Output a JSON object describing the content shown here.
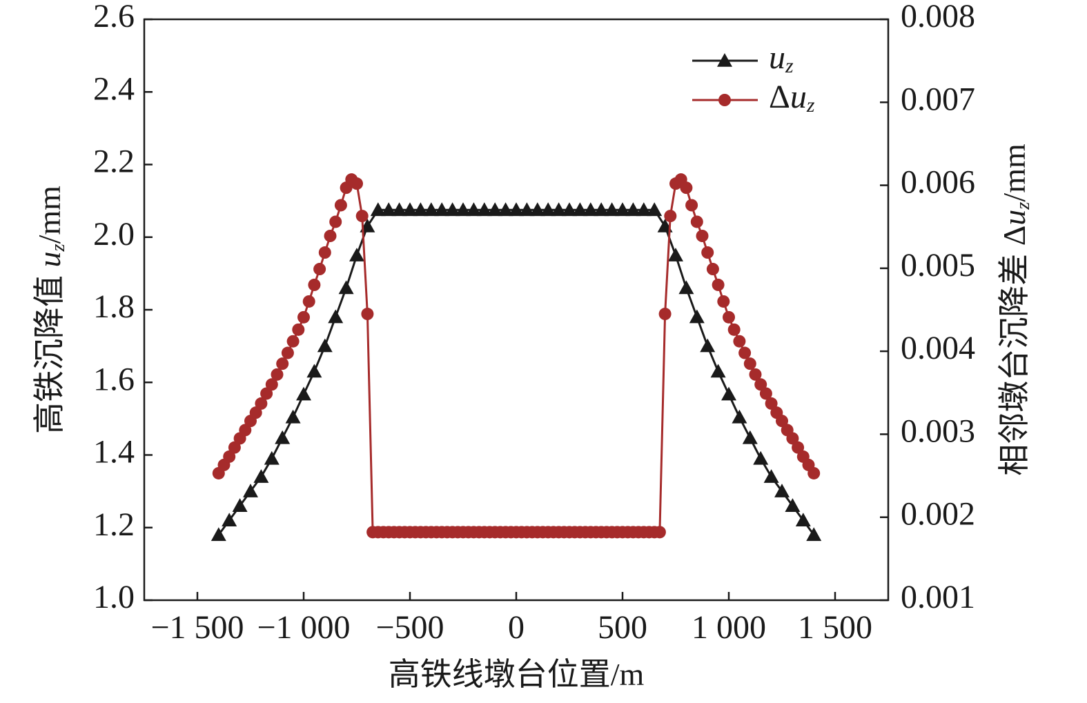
{
  "chart_data": {
    "type": "line",
    "x_label": "高铁线墩台位置/m",
    "y_label": "高铁沉降值 uz/mm",
    "y2_label": "相邻墩台沉降差 Δuz/mm",
    "xlim": [
      -1750,
      1750
    ],
    "xticks": [
      {
        "value": -1500,
        "label": "−1 500"
      },
      {
        "value": -1000,
        "label": "−1 000"
      },
      {
        "value": -500,
        "label": "−500"
      },
      0,
      500,
      {
        "value": 1000,
        "label": "1 000"
      },
      {
        "value": 1500,
        "label": "1 500"
      }
    ],
    "ylim": [
      1.0,
      2.6
    ],
    "yticks": [
      {
        "value": 1.0,
        "label": "1.0"
      },
      1.2,
      1.4,
      1.6,
      1.8,
      {
        "value": 2.0,
        "label": "2.0"
      },
      2.2,
      2.4,
      2.6
    ],
    "y2lim": [
      0.001,
      0.008
    ],
    "y2ticks": [
      0.001,
      0.002,
      0.003,
      0.004,
      0.005,
      0.006,
      0.007,
      0.008
    ],
    "legend": "upper right",
    "series": [
      {
        "name": "uz",
        "color": "#1a1a1a",
        "marker": "triangle",
        "axis": "y",
        "x": [
          -1400,
          -1350,
          -1300,
          -1250,
          -1200,
          -1150,
          -1100,
          -1050,
          -1000,
          -950,
          -900,
          -850,
          -800,
          -750,
          -700,
          -650,
          -600,
          -550,
          -500,
          -450,
          -400,
          -350,
          -300,
          -250,
          -200,
          -150,
          -100,
          -50,
          0,
          50,
          100,
          150,
          200,
          250,
          300,
          350,
          400,
          450,
          500,
          550,
          600,
          650,
          700,
          750,
          800,
          850,
          900,
          950,
          1000,
          1050,
          1100,
          1150,
          1200,
          1250,
          1300,
          1350,
          1400
        ],
        "values": [
          1.18,
          1.22,
          1.26,
          1.3,
          1.34,
          1.39,
          1.447,
          1.504,
          1.567,
          1.63,
          1.7,
          1.78,
          1.86,
          1.95,
          2.03,
          2.075,
          2.075,
          2.075,
          2.075,
          2.075,
          2.075,
          2.075,
          2.075,
          2.075,
          2.075,
          2.075,
          2.075,
          2.075,
          2.075,
          2.075,
          2.075,
          2.075,
          2.075,
          2.075,
          2.075,
          2.075,
          2.075,
          2.075,
          2.075,
          2.075,
          2.075,
          2.075,
          2.03,
          1.95,
          1.86,
          1.78,
          1.7,
          1.63,
          1.567,
          1.504,
          1.447,
          1.39,
          1.34,
          1.3,
          1.26,
          1.22,
          1.18
        ]
      },
      {
        "name": "Δuz",
        "color": "#a62b2b",
        "marker": "circle",
        "axis": "y2",
        "x": [
          -1400,
          -1375,
          -1350,
          -1325,
          -1300,
          -1275,
          -1250,
          -1225,
          -1200,
          -1175,
          -1150,
          -1125,
          -1100,
          -1075,
          -1050,
          -1025,
          -1000,
          -975,
          -950,
          -925,
          -900,
          -875,
          -850,
          -825,
          -800,
          -775,
          -750,
          -725,
          -700,
          -675,
          -650,
          -625,
          -600,
          -575,
          -550,
          -525,
          -500,
          -475,
          -450,
          -425,
          -400,
          -375,
          -350,
          -325,
          -300,
          -275,
          -250,
          -225,
          -200,
          -175,
          -150,
          -125,
          -100,
          -75,
          -50,
          -25,
          0,
          25,
          50,
          75,
          100,
          125,
          150,
          175,
          200,
          225,
          250,
          275,
          300,
          325,
          350,
          375,
          400,
          425,
          450,
          475,
          500,
          525,
          550,
          575,
          600,
          625,
          650,
          675,
          700,
          725,
          750,
          775,
          800,
          825,
          850,
          875,
          900,
          925,
          950,
          975,
          1000,
          1025,
          1050,
          1075,
          1100,
          1125,
          1150,
          1175,
          1200,
          1225,
          1250,
          1275,
          1300,
          1325,
          1350,
          1375,
          1400
        ],
        "values": [
          0.00253,
          0.00263,
          0.00273,
          0.00284,
          0.00295,
          0.00305,
          0.00316,
          0.00326,
          0.00337,
          0.00349,
          0.0036,
          0.00372,
          0.00385,
          0.00398,
          0.00412,
          0.00426,
          0.00441,
          0.0046,
          0.0048,
          0.00499,
          0.00519,
          0.00539,
          0.00556,
          0.00576,
          0.00597,
          0.00607,
          0.00602,
          0.00563,
          0.00445,
          0.00182,
          0.00182,
          0.00182,
          0.00182,
          0.00182,
          0.00182,
          0.00182,
          0.00182,
          0.00182,
          0.00182,
          0.00182,
          0.00182,
          0.00182,
          0.00182,
          0.00182,
          0.00182,
          0.00182,
          0.00182,
          0.00182,
          0.00182,
          0.00182,
          0.00182,
          0.00182,
          0.00182,
          0.00182,
          0.00182,
          0.00182,
          0.00182,
          0.00182,
          0.00182,
          0.00182,
          0.00182,
          0.00182,
          0.00182,
          0.00182,
          0.00182,
          0.00182,
          0.00182,
          0.00182,
          0.00182,
          0.00182,
          0.00182,
          0.00182,
          0.00182,
          0.00182,
          0.00182,
          0.00182,
          0.00182,
          0.00182,
          0.00182,
          0.00182,
          0.00182,
          0.00182,
          0.00182,
          0.00182,
          0.00445,
          0.00563,
          0.00602,
          0.00607,
          0.00597,
          0.00576,
          0.00556,
          0.00539,
          0.00519,
          0.00499,
          0.0048,
          0.0046,
          0.00441,
          0.00426,
          0.00412,
          0.00398,
          0.00385,
          0.00372,
          0.0036,
          0.00349,
          0.00337,
          0.00326,
          0.00316,
          0.00305,
          0.00295,
          0.00284,
          0.00273,
          0.00263,
          0.00253
        ]
      }
    ]
  }
}
